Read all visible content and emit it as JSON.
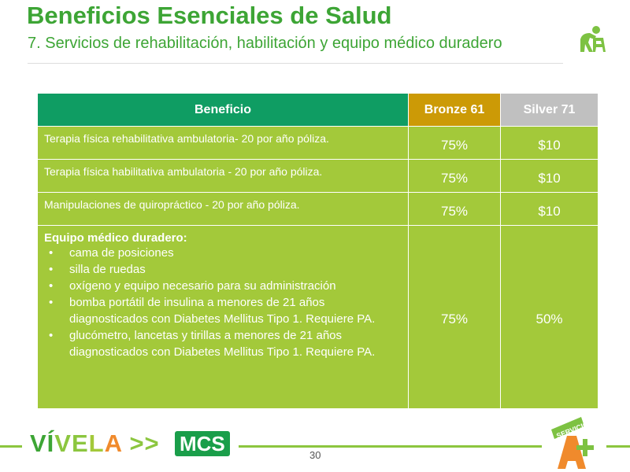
{
  "header": {
    "title": "Beneficios Esenciales de Salud",
    "subtitle": "7. Servicios de rehabilitación, habilitación y equipo médico duradero",
    "icon": "person-with-walker-icon"
  },
  "table": {
    "columns": [
      "Beneficio",
      "Bronze 61",
      "Silver 71"
    ],
    "column_colors": {
      "beneficio": "#0f9d63",
      "bronze": "#cc9a06",
      "silver": "#c0c0c0",
      "body": "#a3c93a"
    },
    "rows": [
      {
        "benefit": "Terapia física rehabilitativa ambulatoria- 20 por año póliza.",
        "bronze": "75%",
        "silver": "$10"
      },
      {
        "benefit": "Terapia física habilitativa ambulatoria - 20 por año póliza.",
        "bronze": "75%",
        "silver": "$10"
      },
      {
        "benefit": "Manipulaciones de quiropráctico - 20 por año póliza.",
        "bronze": "75%",
        "silver": "$10"
      }
    ],
    "equipment": {
      "title": "Equipo médico duradero:",
      "items": [
        "cama de posiciones",
        "silla de ruedas",
        "oxígeno y equipo necesario para su administración",
        "bomba portátil de insulina a menores de 21 años diagnosticados con Diabetes Mellitus Tipo 1.  Requiere PA.",
        "glucómetro, lancetas y tirillas a menores de 21 años diagnosticados con Diabetes Mellitus Tipo 1.  Requiere PA."
      ],
      "bronze": "75%",
      "silver": "50%"
    }
  },
  "footer": {
    "logo_vivela": "VÍVELA >>",
    "logo_mcs": "MCS",
    "page": "30",
    "logo_servicio": "SERVICIO A+ Plus"
  }
}
